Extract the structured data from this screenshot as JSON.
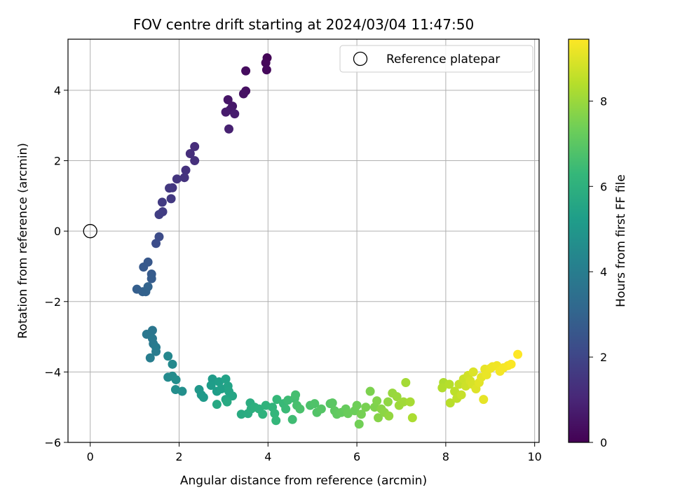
{
  "chart_data": {
    "type": "scatter",
    "title": "FOV centre drift starting at 2024/03/04 11:47:50",
    "xlabel": "Angular distance from reference (arcmin)",
    "ylabel": "Rotation from reference (arcmin)",
    "xlim": [
      -0.5,
      10.1
    ],
    "ylim": [
      -6.0,
      5.45
    ],
    "xticks": [
      0,
      2,
      4,
      6,
      8,
      10
    ],
    "yticks": [
      -6,
      -4,
      -2,
      0,
      2,
      4
    ],
    "grid": true,
    "legend": {
      "placement": "top-right",
      "entries": [
        "Reference platepar"
      ]
    },
    "reference_point": {
      "x": 0,
      "y": 0,
      "label": "Reference platepar"
    },
    "colorbar": {
      "label": "Hours from first FF file",
      "range": [
        0,
        9.45
      ],
      "ticks": [
        0,
        2,
        4,
        6,
        8
      ],
      "colormap": "viridis"
    },
    "colormap_stops": [
      "#440154",
      "#482878",
      "#3e4989",
      "#31688e",
      "#26828e",
      "#1f9e89",
      "#35b779",
      "#6ece58",
      "#b5de2b",
      "#fde725"
    ],
    "points": [
      {
        "x": 3.98,
        "y": 4.92,
        "h": 0.1
      },
      {
        "x": 3.95,
        "y": 4.78,
        "h": 0.15
      },
      {
        "x": 3.97,
        "y": 4.58,
        "h": 0.2
      },
      {
        "x": 3.5,
        "y": 4.55,
        "h": 0.3
      },
      {
        "x": 3.5,
        "y": 3.98,
        "h": 0.4
      },
      {
        "x": 3.45,
        "y": 3.9,
        "h": 0.45
      },
      {
        "x": 3.1,
        "y": 3.73,
        "h": 0.55
      },
      {
        "x": 3.2,
        "y": 3.55,
        "h": 0.6
      },
      {
        "x": 3.15,
        "y": 3.45,
        "h": 0.65
      },
      {
        "x": 3.05,
        "y": 3.38,
        "h": 0.7
      },
      {
        "x": 3.25,
        "y": 3.33,
        "h": 0.75
      },
      {
        "x": 3.12,
        "y": 2.9,
        "h": 0.85
      },
      {
        "x": 2.35,
        "y": 2.4,
        "h": 1.2
      },
      {
        "x": 2.25,
        "y": 2.2,
        "h": 1.25
      },
      {
        "x": 2.35,
        "y": 2.0,
        "h": 1.3
      },
      {
        "x": 2.15,
        "y": 1.73,
        "h": 1.35
      },
      {
        "x": 2.12,
        "y": 1.52,
        "h": 1.4
      },
      {
        "x": 1.95,
        "y": 1.48,
        "h": 1.45
      },
      {
        "x": 1.85,
        "y": 1.23,
        "h": 1.5
      },
      {
        "x": 1.78,
        "y": 1.22,
        "h": 1.55
      },
      {
        "x": 1.82,
        "y": 0.92,
        "h": 1.6
      },
      {
        "x": 1.62,
        "y": 0.82,
        "h": 1.65
      },
      {
        "x": 1.63,
        "y": 0.55,
        "h": 1.7
      },
      {
        "x": 1.55,
        "y": 0.47,
        "h": 1.75
      },
      {
        "x": 1.55,
        "y": -0.16,
        "h": 2.2
      },
      {
        "x": 1.48,
        "y": -0.35,
        "h": 2.25
      },
      {
        "x": 1.3,
        "y": -0.88,
        "h": 2.6
      },
      {
        "x": 1.2,
        "y": -1.02,
        "h": 2.65
      },
      {
        "x": 1.38,
        "y": -1.22,
        "h": 2.7
      },
      {
        "x": 1.38,
        "y": -1.35,
        "h": 2.75
      },
      {
        "x": 1.05,
        "y": -1.65,
        "h": 2.85
      },
      {
        "x": 1.18,
        "y": -1.72,
        "h": 2.9
      },
      {
        "x": 1.25,
        "y": -1.72,
        "h": 2.95
      },
      {
        "x": 1.3,
        "y": -1.58,
        "h": 3.0
      },
      {
        "x": 1.4,
        "y": -2.82,
        "h": 3.7
      },
      {
        "x": 1.27,
        "y": -2.93,
        "h": 3.75
      },
      {
        "x": 1.4,
        "y": -3.05,
        "h": 3.8
      },
      {
        "x": 1.42,
        "y": -3.2,
        "h": 3.85
      },
      {
        "x": 1.48,
        "y": -3.3,
        "h": 3.9
      },
      {
        "x": 1.48,
        "y": -3.42,
        "h": 3.95
      },
      {
        "x": 1.35,
        "y": -3.6,
        "h": 4.0
      },
      {
        "x": 1.75,
        "y": -3.55,
        "h": 4.4
      },
      {
        "x": 1.85,
        "y": -3.78,
        "h": 4.45
      },
      {
        "x": 1.75,
        "y": -4.15,
        "h": 4.5
      },
      {
        "x": 1.85,
        "y": -4.12,
        "h": 4.55
      },
      {
        "x": 1.93,
        "y": -4.22,
        "h": 4.6
      },
      {
        "x": 1.92,
        "y": -4.5,
        "h": 4.65
      },
      {
        "x": 2.07,
        "y": -4.55,
        "h": 4.7
      },
      {
        "x": 2.45,
        "y": -4.5,
        "h": 5.0
      },
      {
        "x": 2.5,
        "y": -4.65,
        "h": 5.05
      },
      {
        "x": 2.55,
        "y": -4.72,
        "h": 5.1
      },
      {
        "x": 2.75,
        "y": -4.2,
        "h": 5.15
      },
      {
        "x": 2.72,
        "y": -4.38,
        "h": 5.2
      },
      {
        "x": 2.85,
        "y": -4.55,
        "h": 5.25
      },
      {
        "x": 2.9,
        "y": -4.28,
        "h": 5.3
      },
      {
        "x": 2.95,
        "y": -4.48,
        "h": 5.35
      },
      {
        "x": 3.05,
        "y": -4.2,
        "h": 5.4
      },
      {
        "x": 3.1,
        "y": -4.4,
        "h": 5.45
      },
      {
        "x": 3.12,
        "y": -4.55,
        "h": 5.5
      },
      {
        "x": 3.2,
        "y": -4.68,
        "h": 5.55
      },
      {
        "x": 3.05,
        "y": -4.78,
        "h": 5.6
      },
      {
        "x": 2.85,
        "y": -4.92,
        "h": 5.65
      },
      {
        "x": 3.08,
        "y": -4.85,
        "h": 5.7
      },
      {
        "x": 3.4,
        "y": -5.2,
        "h": 5.75
      },
      {
        "x": 3.55,
        "y": -5.18,
        "h": 5.8
      },
      {
        "x": 3.6,
        "y": -4.88,
        "h": 5.85
      },
      {
        "x": 3.62,
        "y": -5.05,
        "h": 5.9
      },
      {
        "x": 3.7,
        "y": -5.0,
        "h": 5.95
      },
      {
        "x": 3.8,
        "y": -5.05,
        "h": 6.0
      },
      {
        "x": 3.88,
        "y": -5.2,
        "h": 6.05
      },
      {
        "x": 3.95,
        "y": -4.95,
        "h": 6.1
      },
      {
        "x": 4.1,
        "y": -5.0,
        "h": 6.15
      },
      {
        "x": 4.15,
        "y": -5.18,
        "h": 6.2
      },
      {
        "x": 4.18,
        "y": -5.38,
        "h": 6.25
      },
      {
        "x": 4.2,
        "y": -4.78,
        "h": 6.3
      },
      {
        "x": 4.35,
        "y": -4.9,
        "h": 6.35
      },
      {
        "x": 4.4,
        "y": -5.05,
        "h": 6.4
      },
      {
        "x": 4.45,
        "y": -4.8,
        "h": 6.45
      },
      {
        "x": 4.55,
        "y": -5.35,
        "h": 6.5
      },
      {
        "x": 4.6,
        "y": -4.75,
        "h": 6.55
      },
      {
        "x": 4.62,
        "y": -4.65,
        "h": 6.6
      },
      {
        "x": 4.65,
        "y": -4.95,
        "h": 6.65
      },
      {
        "x": 4.72,
        "y": -5.05,
        "h": 6.7
      },
      {
        "x": 4.95,
        "y": -4.95,
        "h": 6.75
      },
      {
        "x": 5.05,
        "y": -4.9,
        "h": 6.8
      },
      {
        "x": 5.1,
        "y": -5.15,
        "h": 6.85
      },
      {
        "x": 5.2,
        "y": -5.05,
        "h": 6.9
      },
      {
        "x": 5.4,
        "y": -4.9,
        "h": 6.95
      },
      {
        "x": 5.45,
        "y": -4.88,
        "h": 7.0
      },
      {
        "x": 5.5,
        "y": -5.1,
        "h": 7.05
      },
      {
        "x": 5.55,
        "y": -5.2,
        "h": 7.1
      },
      {
        "x": 5.65,
        "y": -5.15,
        "h": 7.15
      },
      {
        "x": 5.75,
        "y": -5.05,
        "h": 7.2
      },
      {
        "x": 5.8,
        "y": -5.18,
        "h": 7.25
      },
      {
        "x": 5.95,
        "y": -5.1,
        "h": 7.3
      },
      {
        "x": 6.0,
        "y": -4.95,
        "h": 7.35
      },
      {
        "x": 6.05,
        "y": -5.48,
        "h": 7.4
      },
      {
        "x": 6.1,
        "y": -5.2,
        "h": 7.45
      },
      {
        "x": 6.2,
        "y": -5.0,
        "h": 7.5
      },
      {
        "x": 6.3,
        "y": -4.55,
        "h": 7.55
      },
      {
        "x": 6.4,
        "y": -5.0,
        "h": 7.6
      },
      {
        "x": 6.45,
        "y": -4.82,
        "h": 7.65
      },
      {
        "x": 6.48,
        "y": -5.3,
        "h": 7.7
      },
      {
        "x": 6.55,
        "y": -5.05,
        "h": 7.75
      },
      {
        "x": 6.62,
        "y": -5.15,
        "h": 7.8
      },
      {
        "x": 6.7,
        "y": -4.85,
        "h": 7.85
      },
      {
        "x": 6.72,
        "y": -5.25,
        "h": 7.9
      },
      {
        "x": 6.8,
        "y": -4.6,
        "h": 7.95
      },
      {
        "x": 6.9,
        "y": -4.7,
        "h": 8.0
      },
      {
        "x": 6.95,
        "y": -4.95,
        "h": 8.05
      },
      {
        "x": 7.05,
        "y": -4.85,
        "h": 8.1
      },
      {
        "x": 7.1,
        "y": -4.3,
        "h": 8.15
      },
      {
        "x": 7.2,
        "y": -4.85,
        "h": 8.2
      },
      {
        "x": 7.25,
        "y": -5.3,
        "h": 8.25
      },
      {
        "x": 7.95,
        "y": -4.3,
        "h": 8.3
      },
      {
        "x": 7.92,
        "y": -4.45,
        "h": 8.35
      },
      {
        "x": 8.08,
        "y": -4.35,
        "h": 8.4
      },
      {
        "x": 8.1,
        "y": -4.88,
        "h": 8.45
      },
      {
        "x": 8.2,
        "y": -4.55,
        "h": 8.5
      },
      {
        "x": 8.25,
        "y": -4.75,
        "h": 8.55
      },
      {
        "x": 8.3,
        "y": -4.35,
        "h": 8.6
      },
      {
        "x": 8.35,
        "y": -4.65,
        "h": 8.65
      },
      {
        "x": 8.4,
        "y": -4.2,
        "h": 8.7
      },
      {
        "x": 8.45,
        "y": -4.4,
        "h": 8.75
      },
      {
        "x": 8.5,
        "y": -4.1,
        "h": 8.8
      },
      {
        "x": 8.55,
        "y": -4.25,
        "h": 8.85
      },
      {
        "x": 8.6,
        "y": -4.35,
        "h": 8.9
      },
      {
        "x": 8.62,
        "y": -4.0,
        "h": 8.95
      },
      {
        "x": 8.68,
        "y": -4.48,
        "h": 9.0
      },
      {
        "x": 8.75,
        "y": -4.3,
        "h": 9.05
      },
      {
        "x": 8.8,
        "y": -4.15,
        "h": 9.1
      },
      {
        "x": 8.85,
        "y": -4.78,
        "h": 9.12
      },
      {
        "x": 8.88,
        "y": -3.92,
        "h": 9.15
      },
      {
        "x": 8.92,
        "y": -4.08,
        "h": 9.18
      },
      {
        "x": 9.0,
        "y": -3.9,
        "h": 9.2
      },
      {
        "x": 9.05,
        "y": -3.85,
        "h": 9.23
      },
      {
        "x": 9.15,
        "y": -3.82,
        "h": 9.26
      },
      {
        "x": 9.22,
        "y": -3.98,
        "h": 9.3
      },
      {
        "x": 9.3,
        "y": -3.88,
        "h": 9.33
      },
      {
        "x": 9.4,
        "y": -3.82,
        "h": 9.36
      },
      {
        "x": 9.47,
        "y": -3.78,
        "h": 9.4
      },
      {
        "x": 9.62,
        "y": -3.5,
        "h": 9.45
      }
    ]
  }
}
